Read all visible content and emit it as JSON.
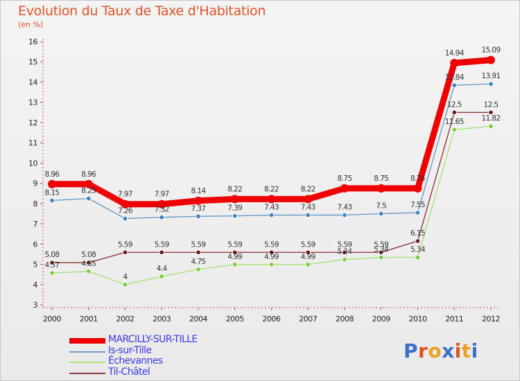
{
  "title": "Evolution du Taux de Taxe d'Habitation",
  "subtitle": "(en %)",
  "brand": "Proxiti",
  "chart_data": {
    "type": "line",
    "title": "Evolution du Taux de Taxe d'Habitation",
    "ylabel": "(en %)",
    "xlabel": "",
    "ylim": [
      3,
      16
    ],
    "yticks": [
      3,
      4,
      5,
      6,
      7,
      8,
      9,
      10,
      11,
      12,
      13,
      14,
      15,
      16
    ],
    "x": [
      "2000",
      "2001",
      "2002",
      "2003",
      "2004",
      "2005",
      "2006",
      "2007",
      "2008",
      "2009",
      "2010",
      "2011",
      "2012"
    ],
    "grid": false,
    "legend_position": "bottom-left",
    "series": [
      {
        "name": "MARCILLY-SUR-TILLE",
        "color": "#ee0000",
        "marker_color": "#ee0000",
        "emphasis": "bold",
        "values": [
          8.96,
          8.96,
          7.97,
          7.97,
          8.14,
          8.22,
          8.22,
          8.22,
          8.75,
          8.75,
          8.75,
          14.94,
          15.09
        ],
        "labels": [
          "8.96",
          "8.96",
          "7.97",
          "7.97",
          "8.14",
          "8.22",
          "8.22",
          "8.22",
          "8.75",
          "8.75",
          "8.75",
          "14.94",
          "15.09"
        ]
      },
      {
        "name": "Is-sur-Tille",
        "color": "#6b9bc8",
        "marker_color": "#3b82c4",
        "emphasis": "normal",
        "values": [
          8.15,
          8.25,
          7.26,
          7.32,
          7.37,
          7.39,
          7.43,
          7.43,
          7.43,
          7.5,
          7.55,
          13.84,
          13.91
        ],
        "labels": [
          "8.15",
          "8.25",
          "7.26",
          "7.32",
          "7.37",
          "7.39",
          "7.43",
          "7.43",
          "7.43",
          "7.5",
          "7.55",
          "13.84",
          "13.91"
        ]
      },
      {
        "name": "Échevannes",
        "color": "#a8e07a",
        "marker_color": "#7acc3c",
        "emphasis": "normal",
        "values": [
          4.57,
          4.65,
          4,
          4.4,
          4.75,
          4.99,
          4.99,
          4.99,
          5.24,
          5.34,
          5.34,
          11.65,
          11.82
        ],
        "labels": [
          "4.57",
          "4.65",
          "4",
          "4.4",
          "4.75",
          "4.99",
          "4.99",
          "4.99",
          "5.24",
          "5.34",
          "5.34",
          "11.65",
          "11.82"
        ]
      },
      {
        "name": "Til-Châtel",
        "color": "#8a3a3a",
        "marker_color": "#6a1a1a",
        "emphasis": "normal",
        "values": [
          5.08,
          5.08,
          5.59,
          5.59,
          5.59,
          5.59,
          5.59,
          5.59,
          5.59,
          5.59,
          6.15,
          12.5,
          12.5
        ],
        "labels": [
          "5.08",
          "5.08",
          "5.59",
          "5.59",
          "5.59",
          "5.59",
          "5.59",
          "5.59",
          "5.59",
          "5.59",
          "6.15",
          "12.5",
          "12.5"
        ]
      }
    ]
  }
}
